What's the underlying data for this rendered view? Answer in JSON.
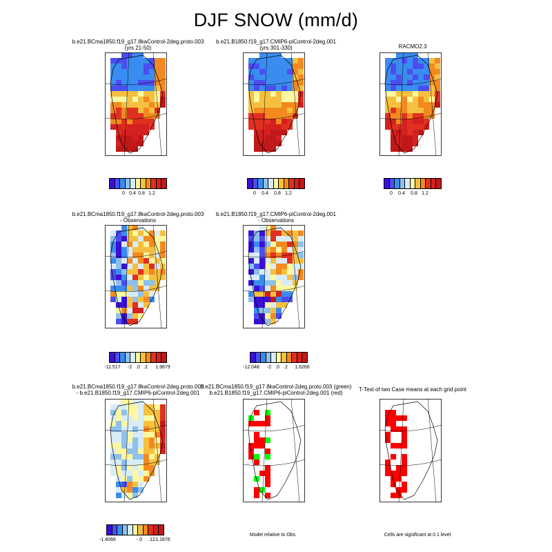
{
  "title": "DJF SNOW (mm/d)",
  "colors": {
    "scale": [
      "#3a10d8",
      "#4a4ef0",
      "#3a8cf0",
      "#8ec0ec",
      "#d8ecf8",
      "#fdf7a0",
      "#f5c040",
      "#f28a20",
      "#e03020",
      "#d42020",
      "#c01818"
    ],
    "greenland_red": "#ff0000",
    "greenland_green": "#00ff00"
  },
  "chart_data": [
    {
      "type": "heatmap",
      "panel": "row1-left",
      "title": [
        "b.e21.BCma1850.f19_g17.8kaControl-2deg.proto.003",
        "(yrs 21-50)"
      ],
      "colorbar_labels": [
        "0",
        "0.4",
        "0.8",
        "1.2"
      ]
    },
    {
      "type": "heatmap",
      "panel": "row1-middle",
      "title": [
        "b.e21.B1850.f19_g17.CMIP6-piControl-2deg.001",
        "(yrs 301-330)"
      ],
      "colorbar_labels": [
        "0",
        "0.4",
        "0.8",
        "1.2"
      ]
    },
    {
      "type": "heatmap",
      "panel": "row1-right",
      "title": [
        "RACMO2.3"
      ],
      "colorbar_labels": [
        "0",
        "0.4",
        "0.8",
        "1.2"
      ]
    },
    {
      "type": "heatmap",
      "panel": "row2-left",
      "title": [
        "b.e21.BCma1850.f19_g17.8kaControl-2deg.proto.003",
        "- Observations"
      ],
      "colorbar_labels": [
        "-11.517",
        "-2",
        ".0",
        ".2",
        "1.9679"
      ]
    },
    {
      "type": "heatmap",
      "panel": "row2-middle",
      "title": [
        "b.e21.B1850.f19_g17.CMIP6-piControl-2deg.001",
        "- Observations"
      ],
      "colorbar_labels": [
        "-12.048",
        "-2",
        ".0",
        ".2",
        "1.6266"
      ]
    },
    {
      "type": "heatmap",
      "panel": "row3-left",
      "title": [
        "b.e21.BCma1850.f19_g17.8kaControl-2deg.proto.003",
        "- b.e21.B1850.f19_g17.CMIP6-piControl-2deg.001"
      ],
      "colorbar_labels": [
        "-1.4066",
        "-.0",
        ".12",
        "1.1876"
      ]
    },
    {
      "type": "heatmap",
      "panel": "row3-middle",
      "title": [
        "b.e21.BCma1850.f19_g17.8kaControl-2deg.proto.003 (green)",
        "b.e21.B1850.f19_g17.CMIP6-piControl-2deg.001 (red)"
      ],
      "footer": "Model relative to Obs"
    },
    {
      "type": "heatmap",
      "panel": "row3-right",
      "title": [
        "T-Test of two Case means at each grid point"
      ],
      "footer": "Cells are significant at 0.1 level"
    }
  ]
}
